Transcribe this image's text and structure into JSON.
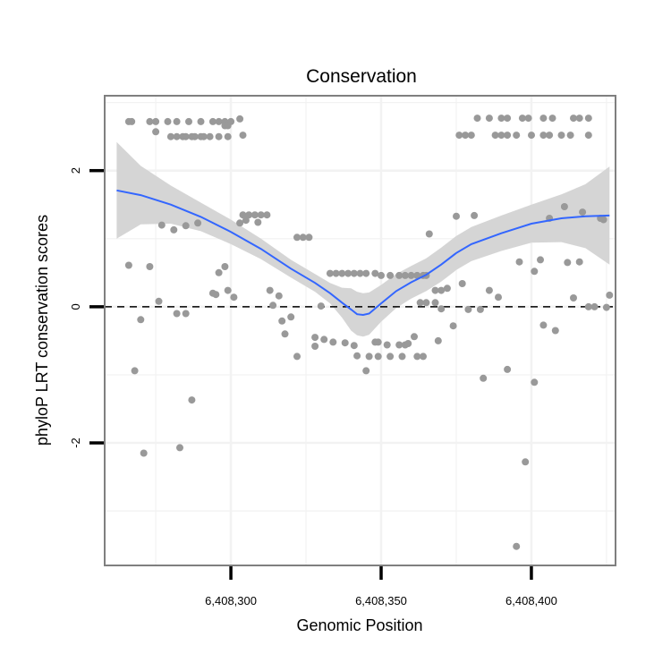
{
  "chart_data": {
    "type": "scatter",
    "title": "Conservation",
    "xlabel": "Genomic Position",
    "ylabel": "phyloP LRT conservation scores",
    "xlim": [
      6408258,
      6408428
    ],
    "ylim": [
      -3.8,
      3.1
    ],
    "x_ticks": [
      6408300,
      6408350,
      6408400
    ],
    "x_tick_labels": [
      "6,408,300",
      "6,408,350",
      "6,408,400"
    ],
    "y_ticks": [
      -2,
      0,
      2
    ],
    "y_tick_labels": [
      "-2",
      "0",
      "2"
    ],
    "grid": true,
    "reference_line": {
      "y": 0,
      "style": "dashed"
    },
    "point_color": "#999999",
    "smooth_color": "#3366FF",
    "band_color": "#d3d3d3",
    "points": [
      [
        6408266,
        2.72
      ],
      [
        6408267,
        2.72
      ],
      [
        6408273,
        2.72
      ],
      [
        6408275,
        2.72
      ],
      [
        6408279,
        2.72
      ],
      [
        6408282,
        2.72
      ],
      [
        6408286,
        2.72
      ],
      [
        6408290,
        2.72
      ],
      [
        6408294,
        2.72
      ],
      [
        6408296,
        2.72
      ],
      [
        6408298,
        2.72
      ],
      [
        6408300,
        2.72
      ],
      [
        6408303,
        2.76
      ],
      [
        6408298,
        2.66
      ],
      [
        6408299,
        2.66
      ],
      [
        6408275,
        2.57
      ],
      [
        6408280,
        2.5
      ],
      [
        6408282,
        2.5
      ],
      [
        6408284,
        2.5
      ],
      [
        6408285,
        2.5
      ],
      [
        6408287,
        2.5
      ],
      [
        6408288,
        2.5
      ],
      [
        6408290,
        2.5
      ],
      [
        6408291,
        2.5
      ],
      [
        6408293,
        2.5
      ],
      [
        6408296,
        2.5
      ],
      [
        6408299,
        2.5
      ],
      [
        6408304,
        2.52
      ],
      [
        6408382,
        2.77
      ],
      [
        6408386,
        2.77
      ],
      [
        6408390,
        2.77
      ],
      [
        6408392,
        2.77
      ],
      [
        6408397,
        2.77
      ],
      [
        6408399,
        2.77
      ],
      [
        6408404,
        2.77
      ],
      [
        6408407,
        2.77
      ],
      [
        6408414,
        2.77
      ],
      [
        6408416,
        2.77
      ],
      [
        6408419,
        2.77
      ],
      [
        6408376,
        2.52
      ],
      [
        6408378,
        2.52
      ],
      [
        6408380,
        2.52
      ],
      [
        6408388,
        2.52
      ],
      [
        6408390,
        2.52
      ],
      [
        6408392,
        2.52
      ],
      [
        6408395,
        2.52
      ],
      [
        6408400,
        2.52
      ],
      [
        6408404,
        2.52
      ],
      [
        6408406,
        2.52
      ],
      [
        6408410,
        2.52
      ],
      [
        6408413,
        2.52
      ],
      [
        6408419,
        2.52
      ],
      [
        6408266,
        0.61
      ],
      [
        6408277,
        1.2
      ],
      [
        6408281,
        1.13
      ],
      [
        6408285,
        1.19
      ],
      [
        6408289,
        1.23
      ],
      [
        6408273,
        0.59
      ],
      [
        6408276,
        0.08
      ],
      [
        6408270,
        -0.19
      ],
      [
        6408268,
        -0.94
      ],
      [
        6408271,
        -2.15
      ],
      [
        6408287,
        -1.37
      ],
      [
        6408283,
        -2.07
      ],
      [
        6408282,
        -0.1
      ],
      [
        6408285,
        -0.1
      ],
      [
        6408294,
        0.2
      ],
      [
        6408295,
        0.18
      ],
      [
        6408296,
        0.5
      ],
      [
        6408298,
        0.59
      ],
      [
        6408299,
        0.24
      ],
      [
        6408301,
        0.14
      ],
      [
        6408303,
        1.23
      ],
      [
        6408305,
        1.27
      ],
      [
        6408304,
        1.35
      ],
      [
        6408306,
        1.35
      ],
      [
        6408308,
        1.35
      ],
      [
        6408310,
        1.35
      ],
      [
        6408312,
        1.35
      ],
      [
        6408309,
        1.24
      ],
      [
        6408313,
        0.24
      ],
      [
        6408314,
        0.02
      ],
      [
        6408316,
        0.16
      ],
      [
        6408317,
        -0.21
      ],
      [
        6408318,
        -0.4
      ],
      [
        6408320,
        -0.15
      ],
      [
        6408322,
        -0.73
      ],
      [
        6408322,
        1.02
      ],
      [
        6408324,
        1.02
      ],
      [
        6408326,
        1.02
      ],
      [
        6408328,
        -0.45
      ],
      [
        6408328,
        -0.58
      ],
      [
        6408331,
        -0.48
      ],
      [
        6408334,
        -0.52
      ],
      [
        6408338,
        -0.53
      ],
      [
        6408341,
        -0.57
      ],
      [
        6408342,
        -0.72
      ],
      [
        6408345,
        -0.94
      ],
      [
        6408348,
        -0.52
      ],
      [
        6408349,
        -0.52
      ],
      [
        6408352,
        -0.56
      ],
      [
        6408356,
        -0.56
      ],
      [
        6408358,
        -0.56
      ],
      [
        6408359,
        -0.54
      ],
      [
        6408361,
        -0.44
      ],
      [
        6408346,
        -0.73
      ],
      [
        6408349,
        -0.73
      ],
      [
        6408353,
        -0.73
      ],
      [
        6408357,
        -0.73
      ],
      [
        6408362,
        -0.73
      ],
      [
        6408364,
        -0.73
      ],
      [
        6408330,
        0.01
      ],
      [
        6408333,
        0.49
      ],
      [
        6408335,
        0.49
      ],
      [
        6408337,
        0.49
      ],
      [
        6408339,
        0.49
      ],
      [
        6408341,
        0.49
      ],
      [
        6408343,
        0.49
      ],
      [
        6408345,
        0.49
      ],
      [
        6408348,
        0.49
      ],
      [
        6408350,
        0.46
      ],
      [
        6408353,
        0.46
      ],
      [
        6408356,
        0.46
      ],
      [
        6408358,
        0.46
      ],
      [
        6408360,
        0.46
      ],
      [
        6408362,
        0.46
      ],
      [
        6408364,
        0.46
      ],
      [
        6408365,
        0.46
      ],
      [
        6408363,
        0.06
      ],
      [
        6408365,
        0.06
      ],
      [
        6408366,
        1.07
      ],
      [
        6408368,
        0.06
      ],
      [
        6408368,
        0.24
      ],
      [
        6408370,
        0.24
      ],
      [
        6408369,
        -0.5
      ],
      [
        6408370,
        -0.03
      ],
      [
        6408372,
        0.27
      ],
      [
        6408374,
        -0.28
      ],
      [
        6408375,
        1.33
      ],
      [
        6408377,
        0.34
      ],
      [
        6408379,
        -0.04
      ],
      [
        6408381,
        1.34
      ],
      [
        6408383,
        -0.04
      ],
      [
        6408384,
        -1.05
      ],
      [
        6408386,
        0.24
      ],
      [
        6408389,
        0.14
      ],
      [
        6408392,
        -0.92
      ],
      [
        6408395,
        -3.52
      ],
      [
        6408396,
        0.66
      ],
      [
        6408398,
        -2.28
      ],
      [
        6408401,
        -1.11
      ],
      [
        6408403,
        0.69
      ],
      [
        6408401,
        0.52
      ],
      [
        6408404,
        -0.27
      ],
      [
        6408406,
        1.3
      ],
      [
        6408408,
        -0.35
      ],
      [
        6408411,
        1.47
      ],
      [
        6408412,
        0.65
      ],
      [
        6408414,
        0.13
      ],
      [
        6408416,
        0.66
      ],
      [
        6408417,
        1.39
      ],
      [
        6408419,
        0.0
      ],
      [
        6408421,
        0.0
      ],
      [
        6408423,
        1.3
      ],
      [
        6408424,
        1.28
      ],
      [
        6408426,
        0.17
      ],
      [
        6408425,
        -0.01
      ]
    ],
    "smooth": {
      "x": [
        6408262,
        6408270,
        6408280,
        6408290,
        6408300,
        6408310,
        6408320,
        6408328,
        6408333,
        6408337,
        6408340,
        6408342,
        6408344,
        6408346,
        6408350,
        6408355,
        6408360,
        6408365,
        6408370,
        6408375,
        6408380,
        6408390,
        6408400,
        6408410,
        6408418,
        6408426
      ],
      "y": [
        1.71,
        1.64,
        1.5,
        1.32,
        1.1,
        0.85,
        0.56,
        0.35,
        0.2,
        0.06,
        -0.04,
        -0.11,
        -0.12,
        -0.1,
        0.05,
        0.23,
        0.36,
        0.47,
        0.62,
        0.79,
        0.92,
        1.08,
        1.22,
        1.3,
        1.33,
        1.34
      ],
      "lower": [
        1.0,
        1.21,
        1.22,
        1.11,
        0.92,
        0.7,
        0.43,
        0.22,
        0.05,
        -0.16,
        -0.35,
        -0.42,
        -0.44,
        -0.41,
        -0.22,
        -0.02,
        0.12,
        0.23,
        0.37,
        0.54,
        0.67,
        0.82,
        0.94,
        0.95,
        0.86,
        0.62
      ],
      "upper": [
        2.42,
        2.07,
        1.78,
        1.53,
        1.28,
        1.0,
        0.69,
        0.48,
        0.35,
        0.28,
        0.27,
        0.22,
        0.2,
        0.21,
        0.32,
        0.48,
        0.6,
        0.71,
        0.87,
        1.04,
        1.17,
        1.34,
        1.5,
        1.65,
        1.8,
        2.06
      ]
    }
  }
}
